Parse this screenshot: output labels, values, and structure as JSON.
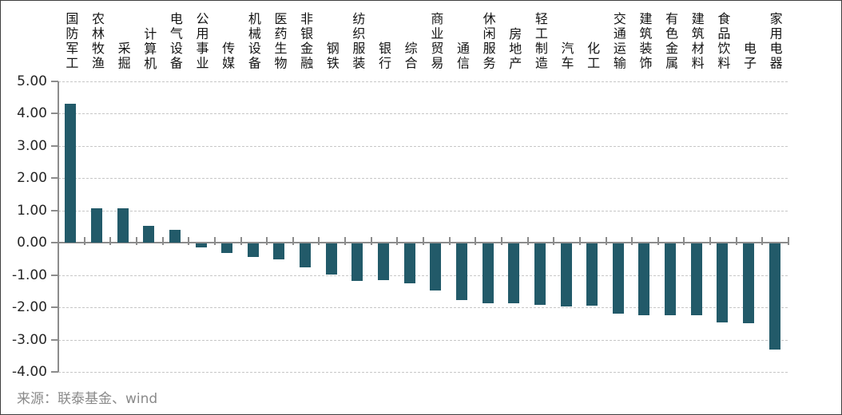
{
  "chart_data": {
    "type": "bar",
    "title": "",
    "xlabel": "",
    "ylabel": "",
    "categories": [
      "国防军工",
      "农林牧渔",
      "采掘",
      "计算机",
      "电气设备",
      "公用事业",
      "传媒",
      "机械设备",
      "医药生物",
      "非银金融",
      "钢铁",
      "纺织服装",
      "银行",
      "综合",
      "商业贸易",
      "通信",
      "休闲服务",
      "房地产",
      "轻工制造",
      "汽车",
      "化工",
      "交通运输",
      "建筑装饰",
      "有色金属",
      "建筑材料",
      "食品饮料",
      "电子",
      "家用电器"
    ],
    "values": [
      4.3,
      1.08,
      1.07,
      0.52,
      0.39,
      -0.12,
      -0.3,
      -0.42,
      -0.49,
      -0.73,
      -0.97,
      -1.15,
      -1.13,
      -1.24,
      -1.45,
      -1.74,
      -1.84,
      -1.84,
      -1.89,
      -1.96,
      -1.93,
      -2.18,
      -2.21,
      -2.21,
      -2.23,
      -2.45,
      -2.46,
      -3.29
    ],
    "ylim": [
      -4,
      5
    ],
    "ytick_labels": [
      "5.00",
      "4.00",
      "3.00",
      "2.00",
      "1.00",
      "0.00",
      "-1.00",
      "-2.00",
      "-3.00",
      "-4.00"
    ],
    "grid": "horizontal-dashed",
    "legend": "none",
    "bar_color": "#225a69"
  },
  "source": {
    "text": "来源：联泰基金、wind"
  },
  "colors": {
    "bar": "#225a69",
    "axis": "#8c8c8c",
    "grid": "#c7c7c7",
    "category_label": "#141414",
    "ytick_label": "#262626",
    "source_text": "#8a8a8a",
    "frame_border": "#3f3f3f",
    "background": "#ffffff"
  }
}
